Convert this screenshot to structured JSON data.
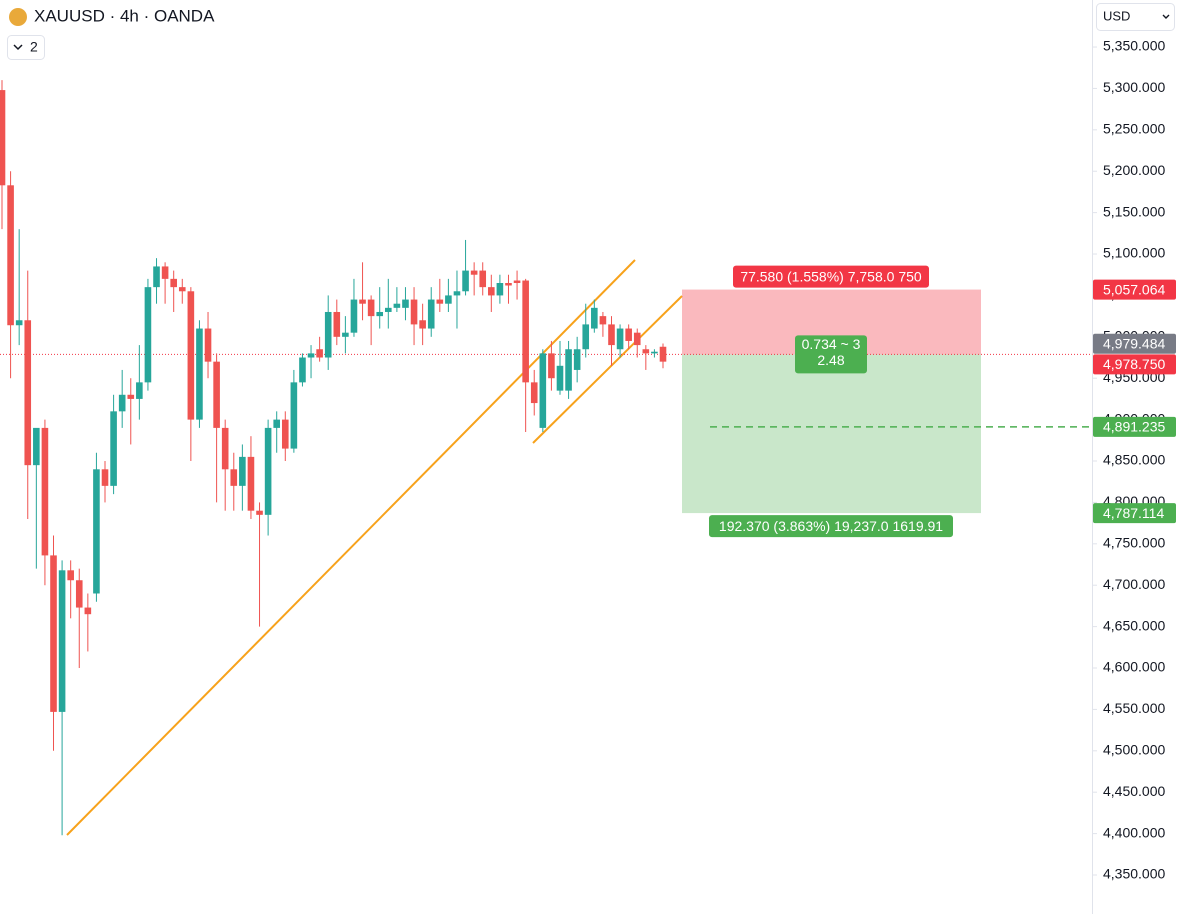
{
  "header": {
    "symbol": "XAUUSD · 4h · OANDA",
    "indicator_count": "2",
    "currency": "USD"
  },
  "chart_data": {
    "type": "candlestick",
    "ylim": [
      4302.9,
      5406.8
    ],
    "yticks": [
      {
        "value": 5350,
        "label": "5,350.000"
      },
      {
        "value": 5300,
        "label": "5,300.000"
      },
      {
        "value": 5250,
        "label": "5,250.000"
      },
      {
        "value": 5200,
        "label": "5,200.000"
      },
      {
        "value": 5150,
        "label": "5,150.000"
      },
      {
        "value": 5100,
        "label": "5,100.000"
      },
      {
        "value": 5050,
        "label": "5,050.000"
      },
      {
        "value": 5000,
        "label": "5,000.000"
      },
      {
        "value": 4950,
        "label": "4,950.000"
      },
      {
        "value": 4900,
        "label": "4,900.000"
      },
      {
        "value": 4850,
        "label": "4,850.000"
      },
      {
        "value": 4800,
        "label": "4,800.000"
      },
      {
        "value": 4750,
        "label": "4,750.000"
      },
      {
        "value": 4700,
        "label": "4,700.000"
      },
      {
        "value": 4650,
        "label": "4,650.000"
      },
      {
        "value": 4600,
        "label": "4,600.000"
      },
      {
        "value": 4550,
        "label": "4,550.000"
      },
      {
        "value": 4500,
        "label": "4,500.000"
      },
      {
        "value": 4450,
        "label": "4,450.000"
      },
      {
        "value": 4400,
        "label": "4,400.000"
      },
      {
        "value": 4350,
        "label": "4,350.000"
      }
    ],
    "up_color": "#26a69a",
    "down_color": "#ef5350",
    "open": [
      5298,
      5183,
      5014,
      5020,
      4845,
      4890,
      4736,
      4547,
      4718,
      4706,
      4673,
      4690,
      4840,
      4820,
      4910,
      4930,
      4925,
      4945,
      5060,
      5085,
      5070,
      5060,
      5055,
      4900,
      5010,
      4970,
      4890,
      4840,
      4820,
      4855,
      4790,
      4785,
      4890,
      4900,
      4865,
      4945,
      4975,
      4985,
      4975,
      5030,
      5000,
      5005,
      5045,
      5045,
      5025,
      5030,
      5035,
      5035,
      5045,
      5020,
      5010,
      5045,
      5040,
      5050,
      5055,
      5080,
      5080,
      5060,
      5050,
      5065,
      5068,
      5068,
      4945,
      4890,
      4980,
      4935,
      4935,
      4960,
      4985,
      5010,
      5025,
      5015,
      4985,
      5010,
      5005,
      4985,
      4980,
      4988
    ],
    "high": [
      5310,
      5200,
      5130,
      5080,
      4880,
      4900,
      4760,
      4730,
      4730,
      4720,
      4690,
      4860,
      4850,
      4930,
      4960,
      4950,
      4990,
      5070,
      5095,
      5090,
      5080,
      5070,
      5060,
      5020,
      5030,
      4980,
      4900,
      4860,
      4870,
      4880,
      4800,
      4900,
      4910,
      4910,
      4960,
      4980,
      4990,
      5000,
      5050,
      5045,
      5025,
      5070,
      5090,
      5050,
      5060,
      5070,
      5060,
      5060,
      5060,
      5040,
      5060,
      5070,
      5070,
      5080,
      5117,
      5090,
      5090,
      5075,
      5075,
      5075,
      5080,
      5070,
      4960,
      4985,
      4995,
      4995,
      4995,
      5000,
      5040,
      5045,
      5030,
      5025,
      5015,
      5015,
      5010,
      4990,
      4985,
      4992
    ],
    "low": [
      5130,
      4950,
      4990,
      4780,
      4720,
      4700,
      4500,
      4398,
      4660,
      4600,
      4620,
      4680,
      4800,
      4810,
      4890,
      4870,
      4900,
      4935,
      5040,
      5040,
      5030,
      5040,
      4850,
      4890,
      4950,
      4800,
      4790,
      4790,
      4790,
      4780,
      4650,
      4760,
      4860,
      4850,
      4860,
      4940,
      4950,
      4970,
      4960,
      4990,
      4980,
      5000,
      5020,
      4990,
      5010,
      5010,
      5030,
      5020,
      4990,
      4990,
      5000,
      5030,
      5030,
      5010,
      5050,
      5050,
      5050,
      5030,
      5040,
      5040,
      5045,
      4885,
      4905,
      4885,
      4935,
      4930,
      4925,
      4945,
      4975,
      5005,
      5000,
      4965,
      4975,
      4985,
      4975,
      4960,
      4975,
      4962
    ],
    "close": [
      5183,
      5014,
      5020,
      4845,
      4890,
      4736,
      4547,
      4718,
      4706,
      4673,
      4665,
      4840,
      4820,
      4910,
      4930,
      4925,
      4945,
      5060,
      5085,
      5070,
      5060,
      5055,
      4900,
      5010,
      4970,
      4890,
      4840,
      4820,
      4855,
      4790,
      4785,
      4890,
      4900,
      4865,
      4945,
      4975,
      4980,
      4975,
      5030,
      5000,
      5005,
      5045,
      5040,
      5025,
      5030,
      5035,
      5040,
      5045,
      5015,
      5010,
      5045,
      5040,
      5050,
      5055,
      5080,
      5075,
      5060,
      5050,
      5065,
      5062,
      5065,
      4945,
      4920,
      4980,
      4950,
      4965,
      4985,
      4985,
      5015,
      5035,
      5015,
      4990,
      5010,
      4995,
      4990,
      4980,
      4982,
      4970
    ],
    "price_labels": [
      {
        "value": 5057.064,
        "label": "5,057.064",
        "color": "#f23645"
      },
      {
        "value": 4979.484,
        "label": "4,979.484",
        "color": "#787b86"
      },
      {
        "value": 4978.75,
        "label": "4,978.750",
        "color": "#f23645"
      },
      {
        "value": 4891.235,
        "label": "4,891.235",
        "color": "#4caf50"
      },
      {
        "value": 4787.114,
        "label": "4,787.114",
        "color": "#4caf50"
      }
    ],
    "position": {
      "stop_text": "77.580 (1.558%) 7,758.0 750",
      "ratio_text": "0.734 ~ 3",
      "ratio": "2.48",
      "target_text": "192.370 (3.863%) 19,237.0 1619.91"
    }
  }
}
